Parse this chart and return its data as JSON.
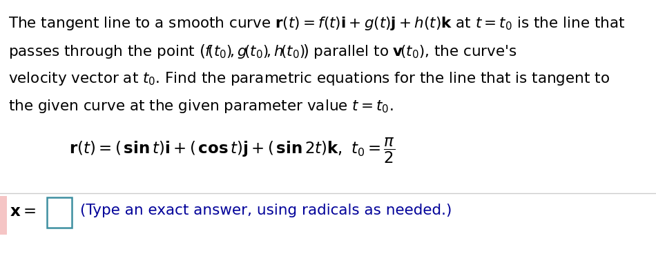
{
  "bg_color": "#ffffff",
  "text_color": "#000000",
  "blue_hint_color": "#000099",
  "pink_bg": "#f5c5c5",
  "teal_border": "#3d8fa0",
  "sep_color": "#cccccc",
  "figsize": [
    9.5,
    3.84
  ],
  "dpi": 100,
  "fs_main": 15.5,
  "fs_eq": 15.5,
  "fs_answer": 15.5
}
